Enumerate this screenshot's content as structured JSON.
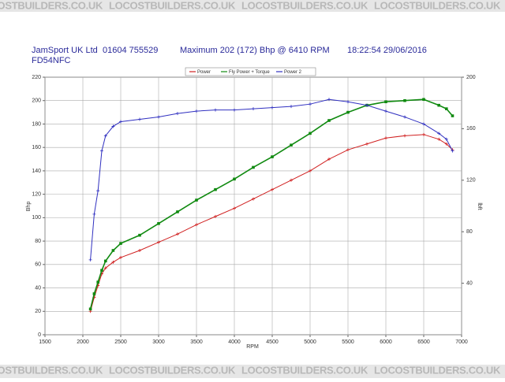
{
  "watermark": "LOCOSTBUILDERS.CO.UK",
  "header": {
    "company": "JamSport UK Ltd",
    "phone": "01604 755529",
    "maximum": "Maximum 202 (172) Bhp @ 6410 RPM",
    "timestamp": "18:22:54 29/06/2016",
    "registration": "FD54NFC"
  },
  "chart_data": {
    "type": "line",
    "xlabel": "RPM",
    "ylabel": "Bhp",
    "y2label": "lbft",
    "xlim": [
      1500,
      7000
    ],
    "xticks": [
      1500,
      2000,
      2500,
      3000,
      3500,
      4000,
      4500,
      5000,
      5500,
      6000,
      6500,
      7000
    ],
    "ylim": [
      0,
      220
    ],
    "yticks": [
      0,
      20,
      40,
      60,
      80,
      100,
      120,
      140,
      160,
      180,
      200,
      220
    ],
    "y2lim": [
      0,
      200
    ],
    "y2ticks": [
      40,
      80,
      120,
      160,
      200
    ],
    "grid": true,
    "legend": "top",
    "x": [
      2100,
      2150,
      2200,
      2250,
      2300,
      2400,
      2500,
      2750,
      3000,
      3250,
      3500,
      3750,
      4000,
      4250,
      4500,
      4750,
      5000,
      5250,
      5500,
      5750,
      6000,
      6250,
      6500,
      6700,
      6800,
      6880
    ],
    "series": [
      {
        "name": "Power",
        "color": "#d02020",
        "values": [
          20,
          32,
          42,
          52,
          57,
          62,
          66,
          72,
          79,
          86,
          94,
          101,
          108,
          116,
          124,
          132,
          140,
          150,
          158,
          163,
          168,
          170,
          171,
          167,
          163,
          158
        ]
      },
      {
        "name": "Fly Power + Torque",
        "color": "#108a10",
        "values": [
          22,
          35,
          45,
          55,
          63,
          72,
          78,
          85,
          95,
          105,
          115,
          124,
          133,
          143,
          152,
          162,
          172,
          183,
          190,
          196,
          199,
          200,
          201,
          196,
          193,
          187
        ]
      },
      {
        "name": "Power 2",
        "color": "#3030c0",
        "values": [
          64,
          103,
          123,
          157,
          170,
          178,
          182,
          184,
          186,
          189,
          191,
          192,
          192,
          193,
          194,
          195,
          197,
          201,
          199,
          196,
          191,
          186,
          180,
          172,
          167,
          157
        ]
      }
    ]
  }
}
